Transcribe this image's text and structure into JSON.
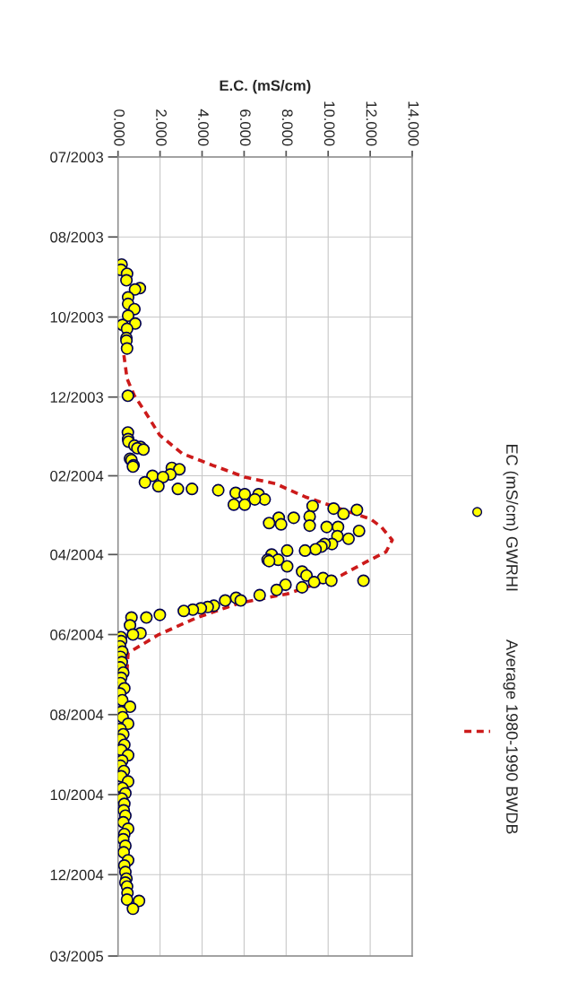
{
  "chart_data": {
    "type": "scatter",
    "xlabel": "E.C. (mS/cm)",
    "orientation": "horizontal",
    "xlim": [
      0,
      14
    ],
    "xticks": [
      {
        "value": 0,
        "label": "0.000"
      },
      {
        "value": 2,
        "label": "2.000"
      },
      {
        "value": 4,
        "label": "4.000"
      },
      {
        "value": 6,
        "label": "6.000"
      },
      {
        "value": 8,
        "label": "8.000"
      },
      {
        "value": 10,
        "label": "10.000"
      },
      {
        "value": 12,
        "label": "12.000"
      },
      {
        "value": 14,
        "label": "14.000"
      }
    ],
    "ylim": [
      "2005-03-01",
      "2003-07-01"
    ],
    "yticks": [
      {
        "value": "2003-07-01",
        "label": "07/2003"
      },
      {
        "value": "2003-08-31",
        "label": "08/2003"
      },
      {
        "value": "2003-10-31",
        "label": "10/2003"
      },
      {
        "value": "2003-12-31",
        "label": "12/2003"
      },
      {
        "value": "2004-02-29",
        "label": "02/2004"
      },
      {
        "value": "2004-04-29",
        "label": "04/2004"
      },
      {
        "value": "2004-06-29",
        "label": "06/2004"
      },
      {
        "value": "2004-08-29",
        "label": "08/2004"
      },
      {
        "value": "2004-10-29",
        "label": "10/2004"
      },
      {
        "value": "2004-12-29",
        "label": "12/2004"
      },
      {
        "value": "2005-03-01",
        "label": "03/2005"
      }
    ],
    "grid": true,
    "legend": "right",
    "series": [
      {
        "name": "EC (mS/cm) GWRHI",
        "marker": "circle",
        "color": "#ffff00",
        "x": [
          "2003-09-21",
          "2003-09-25",
          "2003-09-28",
          "2003-10-03",
          "2003-10-09",
          "2003-10-10",
          "2003-10-16",
          "2003-10-21",
          "2003-10-25",
          "2003-10-30",
          "2003-11-05",
          "2003-11-06",
          "2003-11-09",
          "2003-11-16",
          "2003-11-18",
          "2003-11-24",
          "2003-12-30",
          "2004-01-27",
          "2004-02-01",
          "2004-02-03",
          "2004-02-06",
          "2004-02-07",
          "2004-02-08",
          "2004-02-09",
          "2004-02-16",
          "2004-02-17",
          "2004-02-21",
          "2004-02-22",
          "2004-02-23",
          "2004-02-24",
          "2004-02-28",
          "2004-02-29",
          "2004-03-01",
          "2004-03-05",
          "2004-03-08",
          "2004-03-10",
          "2004-03-10",
          "2004-03-11",
          "2004-03-13",
          "2004-03-14",
          "2004-03-14",
          "2004-03-18",
          "2004-03-18",
          "2004-03-22",
          "2004-03-22",
          "2004-03-23",
          "2004-03-25",
          "2004-03-26",
          "2004-03-29",
          "2004-03-31",
          "2004-04-01",
          "2004-04-01",
          "2004-04-05",
          "2004-04-06",
          "2004-04-07",
          "2004-04-08",
          "2004-04-08",
          "2004-04-11",
          "2004-04-15",
          "2004-04-17",
          "2004-04-21",
          "2004-04-21",
          "2004-04-23",
          "2004-04-25",
          "2004-04-26",
          "2004-04-26",
          "2004-04-29",
          "2004-05-03",
          "2004-05-03",
          "2004-05-04",
          "2004-05-08",
          "2004-05-12",
          "2004-05-15",
          "2004-05-17",
          "2004-05-19",
          "2004-05-19",
          "2004-05-20",
          "2004-05-22",
          "2004-05-24",
          "2004-05-26",
          "2004-05-30",
          "2004-06-01",
          "2004-06-03",
          "2004-06-03",
          "2004-06-07",
          "2004-06-08",
          "2004-06-09",
          "2004-06-10",
          "2004-06-11",
          "2004-06-14",
          "2004-06-16",
          "2004-06-16",
          "2004-06-22",
          "2004-06-28",
          "2004-06-29",
          "2004-07-01",
          "2004-07-04",
          "2004-07-08",
          "2004-07-12",
          "2004-07-16",
          "2004-07-20",
          "2004-07-24",
          "2004-07-28",
          "2004-08-01",
          "2004-08-05",
          "2004-08-09",
          "2004-08-13",
          "2004-08-18",
          "2004-08-23",
          "2004-08-27",
          "2004-08-31",
          "2004-09-05",
          "2004-09-09",
          "2004-09-13",
          "2004-09-17",
          "2004-09-21",
          "2004-09-25",
          "2004-09-29",
          "2004-10-03",
          "2004-10-07",
          "2004-10-11",
          "2004-10-15",
          "2004-10-19",
          "2004-10-24",
          "2004-10-28",
          "2004-11-01",
          "2004-11-05",
          "2004-11-10",
          "2004-11-14",
          "2004-11-19",
          "2004-11-24",
          "2004-11-28",
          "2004-12-02",
          "2004-12-07",
          "2004-12-12",
          "2004-12-18",
          "2004-12-22",
          "2004-12-27",
          "2005-01-01",
          "2005-01-04",
          "2005-01-07",
          "2005-01-12",
          "2005-01-17",
          "2005-01-18",
          "2005-01-24"
        ],
        "values": [
          0.17,
          0.14,
          0.43,
          0.4,
          1.04,
          0.81,
          0.48,
          0.48,
          0.78,
          0.48,
          0.82,
          0.21,
          0.43,
          0.4,
          0.4,
          0.43,
          0.47,
          0.47,
          0.48,
          0.5,
          0.78,
          1.07,
          0.92,
          1.21,
          0.57,
          0.64,
          0.74,
          0.71,
          2.56,
          2.92,
          2.49,
          1.64,
          2.14,
          1.28,
          1.92,
          2.85,
          3.52,
          4.77,
          5.6,
          6.03,
          6.69,
          6.98,
          6.51,
          5.51,
          6.03,
          9.26,
          10.26,
          11.37,
          10.73,
          9.12,
          7.65,
          8.36,
          7.19,
          7.76,
          9.12,
          9.93,
          10.47,
          11.47,
          10.44,
          10.97,
          10.18,
          9.83,
          9.68,
          9.4,
          8.05,
          8.9,
          7.31,
          7.12,
          7.62,
          7.19,
          8.05,
          8.76,
          8.97,
          9.76,
          10.15,
          11.68,
          9.33,
          7.97,
          8.76,
          7.55,
          6.74,
          5.62,
          5.84,
          5.1,
          4.56,
          4.27,
          3.94,
          3.56,
          3.13,
          1.99,
          1.35,
          0.64,
          0.57,
          1.07,
          0.71,
          0.14,
          0.15,
          0.1,
          0.2,
          0.12,
          0.18,
          0.1,
          0.25,
          0.15,
          0.12,
          0.3,
          0.1,
          0.2,
          0.57,
          0.15,
          0.22,
          0.48,
          0.12,
          0.25,
          0.1,
          0.3,
          0.15,
          0.48,
          0.2,
          0.12,
          0.28,
          0.15,
          0.48,
          0.21,
          0.35,
          0.18,
          0.3,
          0.27,
          0.35,
          0.25,
          0.48,
          0.3,
          0.25,
          0.35,
          0.27,
          0.48,
          0.3,
          0.35,
          0.4,
          0.35,
          0.43,
          0.45,
          0.43,
          1.0,
          0.71
        ]
      },
      {
        "name": "Average 1980-1990 BWDB",
        "type": "line",
        "marker": "none",
        "line_style": "dashed",
        "color": "#cc1a1a",
        "x": [
          "2003-11-29",
          "2003-12-17",
          "2003-12-30",
          "2004-01-11",
          "2004-01-29",
          "2004-02-12",
          "2004-02-21",
          "2004-03-01",
          "2004-03-06",
          "2004-03-16",
          "2004-03-27",
          "2004-04-02",
          "2004-04-08",
          "2004-04-18",
          "2004-04-27",
          "2004-05-05",
          "2004-05-15",
          "2004-05-29",
          "2004-06-05",
          "2004-06-16",
          "2004-06-29",
          "2004-07-13",
          "2004-07-26"
        ],
        "values": [
          0.28,
          0.43,
          0.78,
          1.28,
          1.98,
          3.05,
          4.5,
          6.03,
          7.49,
          8.9,
          10.91,
          12.02,
          12.53,
          13.05,
          12.75,
          11.76,
          10.61,
          8.05,
          5.78,
          3.77,
          1.94,
          0.48,
          0.43
        ]
      }
    ]
  }
}
